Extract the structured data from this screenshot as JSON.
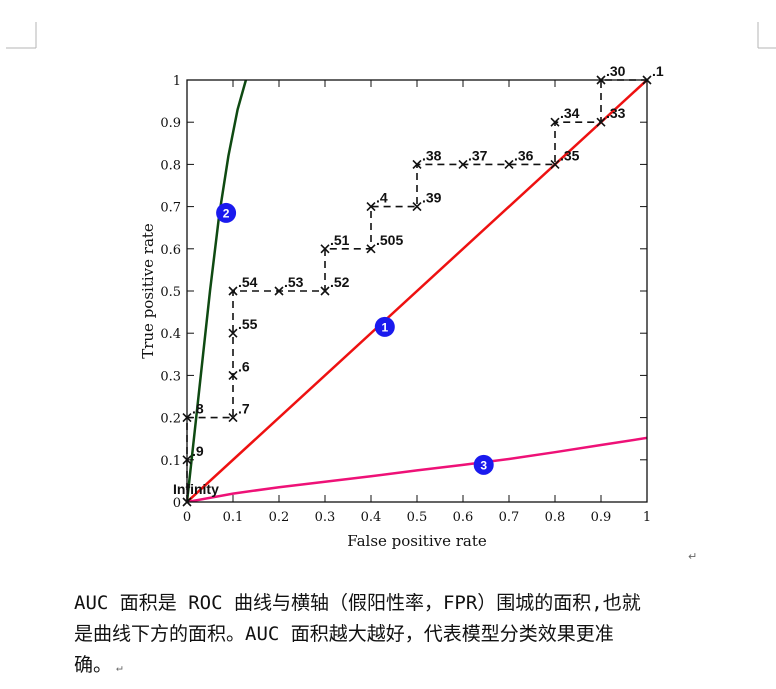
{
  "chart_data": {
    "type": "line",
    "xlabel": "False positive rate",
    "ylabel": "True positive rate",
    "xlim": [
      0,
      1
    ],
    "ylim": [
      0,
      1
    ],
    "xticks": [
      "0",
      "0.1",
      "0.2",
      "0.3",
      "0.4",
      "0.5",
      "0.6",
      "0.7",
      "0.8",
      "0.9",
      "1"
    ],
    "yticks": [
      "0",
      "0.1",
      "0.2",
      "0.3",
      "0.4",
      "0.5",
      "0.6",
      "0.7",
      "0.8",
      "0.9",
      "1"
    ],
    "grid": false,
    "step_points": [
      {
        "x": 0.0,
        "y": 0.0,
        "label": "Infinity"
      },
      {
        "x": 0.0,
        "y": 0.1,
        "label": ".9"
      },
      {
        "x": 0.0,
        "y": 0.2,
        "label": ".8"
      },
      {
        "x": 0.1,
        "y": 0.2,
        "label": ".7"
      },
      {
        "x": 0.1,
        "y": 0.3,
        "label": ".6"
      },
      {
        "x": 0.1,
        "y": 0.4,
        "label": ".55"
      },
      {
        "x": 0.1,
        "y": 0.5,
        "label": ".54"
      },
      {
        "x": 0.2,
        "y": 0.5,
        "label": ".53"
      },
      {
        "x": 0.3,
        "y": 0.5,
        "label": ".52"
      },
      {
        "x": 0.3,
        "y": 0.6,
        "label": ".51"
      },
      {
        "x": 0.4,
        "y": 0.6,
        "label": ".505"
      },
      {
        "x": 0.4,
        "y": 0.7,
        "label": ".4"
      },
      {
        "x": 0.5,
        "y": 0.7,
        "label": ".39"
      },
      {
        "x": 0.5,
        "y": 0.8,
        "label": ".38"
      },
      {
        "x": 0.6,
        "y": 0.8,
        "label": ".37"
      },
      {
        "x": 0.7,
        "y": 0.8,
        "label": ".36"
      },
      {
        "x": 0.8,
        "y": 0.8,
        "label": ".35"
      },
      {
        "x": 0.8,
        "y": 0.9,
        "label": ".34"
      },
      {
        "x": 0.9,
        "y": 0.9,
        "label": ".33"
      },
      {
        "x": 0.9,
        "y": 1.0,
        "label": ".30"
      },
      {
        "x": 1.0,
        "y": 1.0,
        "label": ".1"
      }
    ],
    "curves": [
      {
        "marker": "1",
        "color": "#ee1111",
        "points": [
          [
            0,
            0
          ],
          [
            1,
            1
          ]
        ]
      },
      {
        "marker": "2",
        "color": "#0f4a12",
        "points": [
          [
            0,
            0
          ],
          [
            0.01,
            0.1
          ],
          [
            0.02,
            0.2
          ],
          [
            0.035,
            0.35
          ],
          [
            0.05,
            0.5
          ],
          [
            0.07,
            0.68
          ],
          [
            0.09,
            0.82
          ],
          [
            0.11,
            0.93
          ],
          [
            0.128,
            1.0
          ]
        ]
      },
      {
        "marker": "3",
        "color": "#ee1177",
        "points": [
          [
            0,
            0
          ],
          [
            0.1,
            0.02
          ],
          [
            0.2,
            0.035
          ],
          [
            0.3,
            0.048
          ],
          [
            0.4,
            0.061
          ],
          [
            0.5,
            0.075
          ],
          [
            0.6,
            0.088
          ],
          [
            0.7,
            0.102
          ],
          [
            0.8,
            0.118
          ],
          [
            0.9,
            0.135
          ],
          [
            1.0,
            0.152
          ]
        ]
      }
    ],
    "curve_marker_positions": [
      {
        "marker": "1",
        "x": 0.43,
        "y": 0.415
      },
      {
        "marker": "2",
        "x": 0.085,
        "y": 0.685
      },
      {
        "marker": "3",
        "x": 0.645,
        "y": 0.088
      }
    ]
  },
  "caption": {
    "line1": "AUC 面积是 ROC 曲线与横轴（假阳性率，FPR）围城的面积,也就",
    "line2": "是曲线下方的面积。AUC 面积越大越好，代表模型分类效果更准",
    "line3": "确。"
  },
  "return_mark": "↵"
}
